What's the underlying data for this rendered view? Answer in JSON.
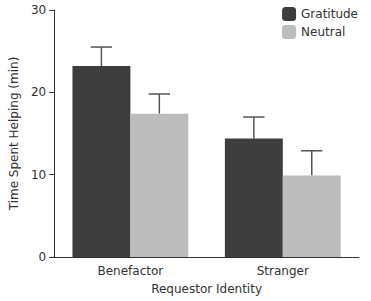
{
  "chart_data": {
    "type": "bar",
    "x_label": "Requestor Identity",
    "y_label": "Time Spent Helping (min)",
    "categories": [
      "Benefactor",
      "Stranger"
    ],
    "series": [
      {
        "name": "Gratitude",
        "color": "#3d3d3d",
        "values": [
          23.2,
          14.4
        ],
        "errors": [
          2.3,
          2.6
        ]
      },
      {
        "name": "Neutral",
        "color": "#bcbcbc",
        "values": [
          17.4,
          9.9
        ],
        "errors": [
          2.4,
          3.0
        ]
      }
    ],
    "ylim": [
      0,
      30
    ],
    "yticks": [
      0,
      10,
      20,
      30
    ],
    "grid": false,
    "legend": "upper right"
  }
}
